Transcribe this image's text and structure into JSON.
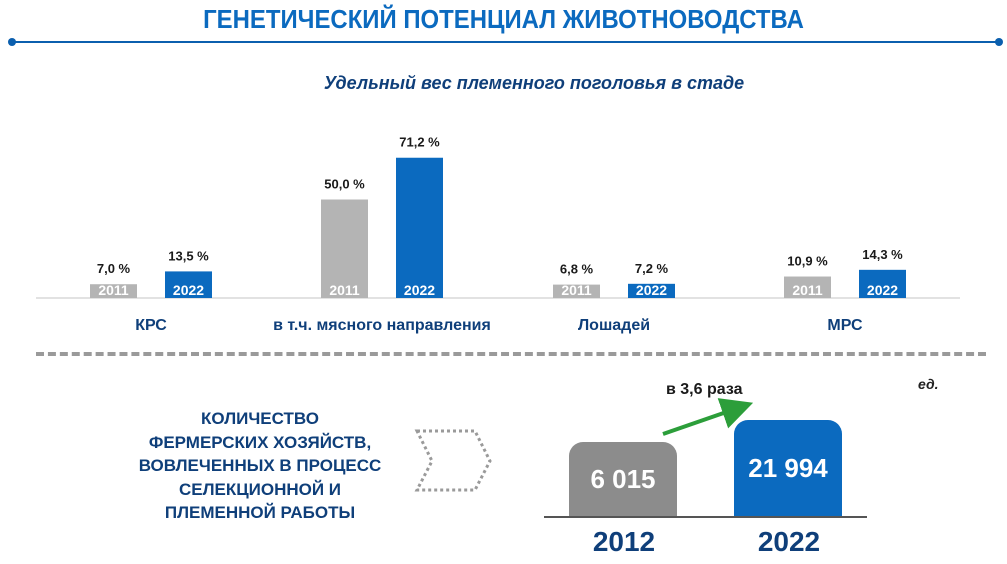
{
  "title": "ГЕНЕТИЧЕСКИЙ ПОТЕНЦИАЛ ЖИВОТНОВОДСТВА",
  "colors": {
    "accent": "#0b6abf",
    "dark_blue": "#0f3f7a",
    "gray_bar": "#b4b4b4",
    "arrow_green": "#2c9e3a",
    "box_gray": "#8c8c8c"
  },
  "chart_data": [
    {
      "type": "bar",
      "title": "Удельный вес племенного поголовья в стаде",
      "categories": [
        "КРС",
        "в т.ч. мясного направления",
        "Лошадей",
        "МРС"
      ],
      "series": [
        {
          "name": "2011",
          "values": [
            7.0,
            50.0,
            6.8,
            10.9
          ],
          "labels": [
            "7,0 %",
            "50,0 %",
            "6,8 %",
            "10,9 %"
          ]
        },
        {
          "name": "2022",
          "values": [
            13.5,
            71.2,
            7.2,
            14.3
          ],
          "labels": [
            "13,5 %",
            "71,2 %",
            "7,2 %",
            "14,3 %"
          ]
        }
      ]
    },
    {
      "type": "bar",
      "title": "КОЛИЧЕСТВО ФЕРМЕРСКИХ ХОЗЯЙСТВ, ВОВЛЕЧЕННЫХ В ПРОЦЕСС СЕЛЕКЦИОННОЙ И ПЛЕМЕННОЙ РАБОТЫ",
      "unit": "ед.",
      "categories": [
        "2012",
        "2022"
      ],
      "values": [
        6015,
        21994
      ],
      "value_labels": [
        "6 015",
        "21 994"
      ],
      "annotation": "в 3,6 раза"
    }
  ],
  "farms": {
    "label_lines": [
      "КОЛИЧЕСТВО",
      "ФЕРМЕРСКИХ ХОЗЯЙСТВ,",
      "ВОВЛЕЧЕННЫХ В ПРОЦЕСС",
      "СЕЛЕКЦИОННОЙ И",
      "ПЛЕМЕННОЙ РАБОТЫ"
    ]
  },
  "icons": {
    "chevron": "chevron-right-dotted-icon",
    "arrow": "growth-arrow-icon"
  }
}
